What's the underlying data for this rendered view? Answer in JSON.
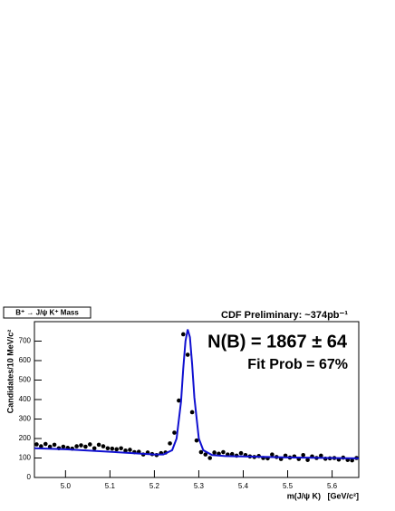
{
  "chart_data": {
    "type": "scatter",
    "legend_box": "B⁺ → J/ψ K⁺ Mass",
    "title": "CDF Preliminary: ~374pb⁻¹",
    "annotations": [
      "N(B) = 1867 ± 64",
      "Fit Prob = 67%"
    ],
    "x_label": "m(J/ψ K)   [GeV/c²]",
    "y_label": "Candidates/10 MeV/c²",
    "xlim": [
      4.93,
      5.66
    ],
    "ylim": [
      0,
      800
    ],
    "xticks": [
      {
        "value": 5,
        "label": "5.0"
      },
      5.1,
      5.2,
      5.3,
      5.4,
      5.5,
      5.6
    ],
    "yticks": [
      0,
      100,
      200,
      300,
      400,
      500,
      600,
      700
    ],
    "series": [
      {
        "type": "scatter",
        "color": "#000000",
        "x": [
          4.935,
          4.945,
          4.955,
          4.965,
          4.975,
          4.985,
          4.995,
          5.005,
          5.015,
          5.025,
          5.035,
          5.045,
          5.055,
          5.065,
          5.075,
          5.085,
          5.095,
          5.105,
          5.115,
          5.125,
          5.135,
          5.145,
          5.155,
          5.165,
          5.175,
          5.185,
          5.195,
          5.205,
          5.215,
          5.225,
          5.235,
          5.245,
          5.255,
          5.265,
          5.275,
          5.285,
          5.295,
          5.305,
          5.315,
          5.325,
          5.335,
          5.345,
          5.355,
          5.365,
          5.375,
          5.385,
          5.395,
          5.405,
          5.415,
          5.425,
          5.435,
          5.445,
          5.455,
          5.465,
          5.475,
          5.485,
          5.495,
          5.505,
          5.515,
          5.525,
          5.535,
          5.545,
          5.555,
          5.565,
          5.575,
          5.585,
          5.595,
          5.605,
          5.615,
          5.625,
          5.635,
          5.645,
          5.655
        ],
        "values": [
          170,
          160,
          172,
          158,
          168,
          150,
          158,
          152,
          148,
          160,
          165,
          158,
          170,
          150,
          168,
          160,
          150,
          148,
          145,
          150,
          138,
          142,
          130,
          132,
          118,
          128,
          120,
          115,
          125,
          128,
          175,
          230,
          395,
          735,
          630,
          335,
          190,
          130,
          118,
          100,
          128,
          122,
          130,
          118,
          120,
          112,
          125,
          115,
          108,
          105,
          110,
          100,
          98,
          118,
          105,
          95,
          112,
          102,
          108,
          95,
          115,
          90,
          108,
          100,
          112,
          96,
          98,
          100,
          92,
          102,
          90,
          88,
          100
        ]
      },
      {
        "type": "line",
        "color": "#1010d0",
        "x": [
          4.93,
          5.0,
          5.1,
          5.15,
          5.2,
          5.22,
          5.24,
          5.25,
          5.26,
          5.265,
          5.27,
          5.275,
          5.28,
          5.285,
          5.29,
          5.3,
          5.31,
          5.33,
          5.36,
          5.4,
          5.5,
          5.6,
          5.66
        ],
        "values": [
          150,
          145,
          132,
          125,
          118,
          118,
          140,
          200,
          390,
          560,
          700,
          760,
          720,
          580,
          410,
          200,
          140,
          115,
          110,
          108,
          103,
          100,
          98
        ]
      }
    ]
  }
}
